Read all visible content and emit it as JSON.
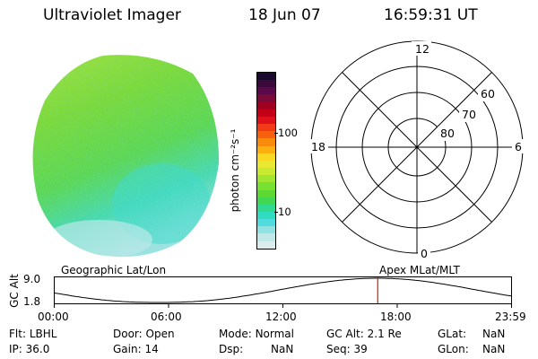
{
  "header": {
    "title": "Ultraviolet Imager",
    "date": "18 Jun 07",
    "time": "16:59:31 UT"
  },
  "colorbar": {
    "unit_label": "photon cm⁻²s⁻¹",
    "ticks": [
      {
        "value": 100,
        "label": "100"
      },
      {
        "value": 10,
        "label": "10"
      }
    ],
    "colors_top_to_bottom": [
      "#1a0a2e",
      "#3b0a3b",
      "#5a0a4a",
      "#7a0a3a",
      "#a00020",
      "#c40018",
      "#e0101a",
      "#f03a18",
      "#f86010",
      "#fa8a0c",
      "#fbb010",
      "#f8d820",
      "#e8e830",
      "#c8ea30",
      "#a0e630",
      "#78e030",
      "#5cd830",
      "#40d850",
      "#30d890",
      "#30dcc0",
      "#50dcdc",
      "#90e2e2",
      "#c0e8e8",
      "#dcecec"
    ]
  },
  "polar_plot": {
    "mlt_labels": {
      "top": "12",
      "left": "18",
      "right": "6",
      "bottom": "0"
    },
    "lat_labels": [
      "60",
      "70",
      "80"
    ]
  },
  "strip": {
    "left_label": "Geographic Lat/Lon",
    "right_label": "Apex MLat/MLT",
    "axis_label": "GC Alt",
    "y_ticks": [
      "9.0",
      "1.8"
    ],
    "x_ticks": [
      "00:00",
      "06:00",
      "12:00",
      "18:00",
      "23:59"
    ],
    "current_time_hours": 17.0
  },
  "status": {
    "row1": [
      {
        "key": "Flt:",
        "value": "LBHL"
      },
      {
        "key": "Door:",
        "value": "Open"
      },
      {
        "key": "Mode:",
        "value": "Normal"
      },
      {
        "key": "GC Alt:",
        "value": "2.1 Re"
      },
      {
        "key": "GLat:",
        "value": "NaN"
      }
    ],
    "row2": [
      {
        "key": "IP:",
        "value": "36.0"
      },
      {
        "key": "Gain:",
        "value": "14"
      },
      {
        "key": "Dsp:",
        "value": "NaN"
      },
      {
        "key": "Seq:",
        "value": "39"
      },
      {
        "key": "GLon:",
        "value": "NaN"
      }
    ]
  },
  "colors": {
    "current_time_marker": "#cc2200"
  }
}
